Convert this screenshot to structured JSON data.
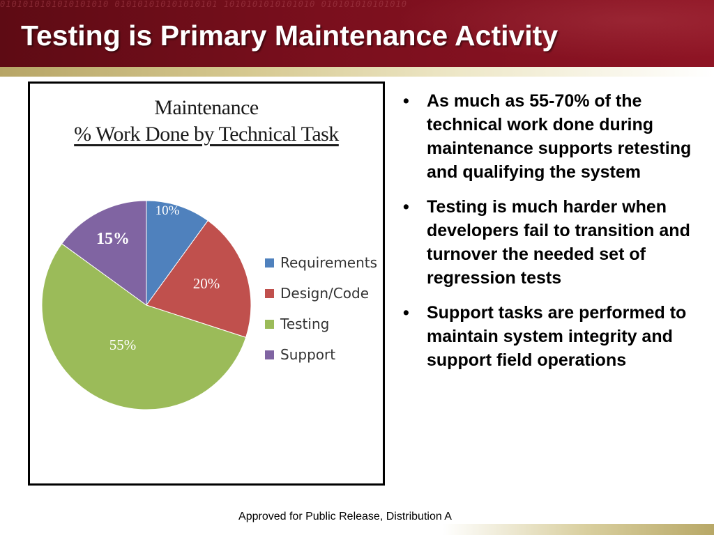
{
  "slide": {
    "title": "Testing is Primary Maintenance Activity",
    "footer": "Approved for Public Release, Distribution A",
    "bullets": [
      "As much as 55-70% of the technical work done during maintenance supports retesting and qualifying the system",
      "Testing is much harder when developers fail to transition and turnover the needed set of regression tests",
      "Support tasks are performed to maintain system integrity and support field operations"
    ]
  },
  "header_decoration": "0101010101010101010 010101010101010101 1010101010101010 010101010101010",
  "chart_data": {
    "type": "pie",
    "title": "Maintenance",
    "subtitle": "% Work Done by Technical Task",
    "categories": [
      "Requirements",
      "Design/Code",
      "Testing",
      "Support"
    ],
    "values": [
      10,
      20,
      55,
      15
    ],
    "labels": [
      "10%",
      "20%",
      "55%",
      "15%"
    ],
    "colors": [
      "#4f81bd",
      "#c0504d",
      "#9bbb59",
      "#8064a2"
    ],
    "legend": "right"
  },
  "colors": {
    "header": "#7a0f1d",
    "accent_gold": "#c9b97a"
  }
}
